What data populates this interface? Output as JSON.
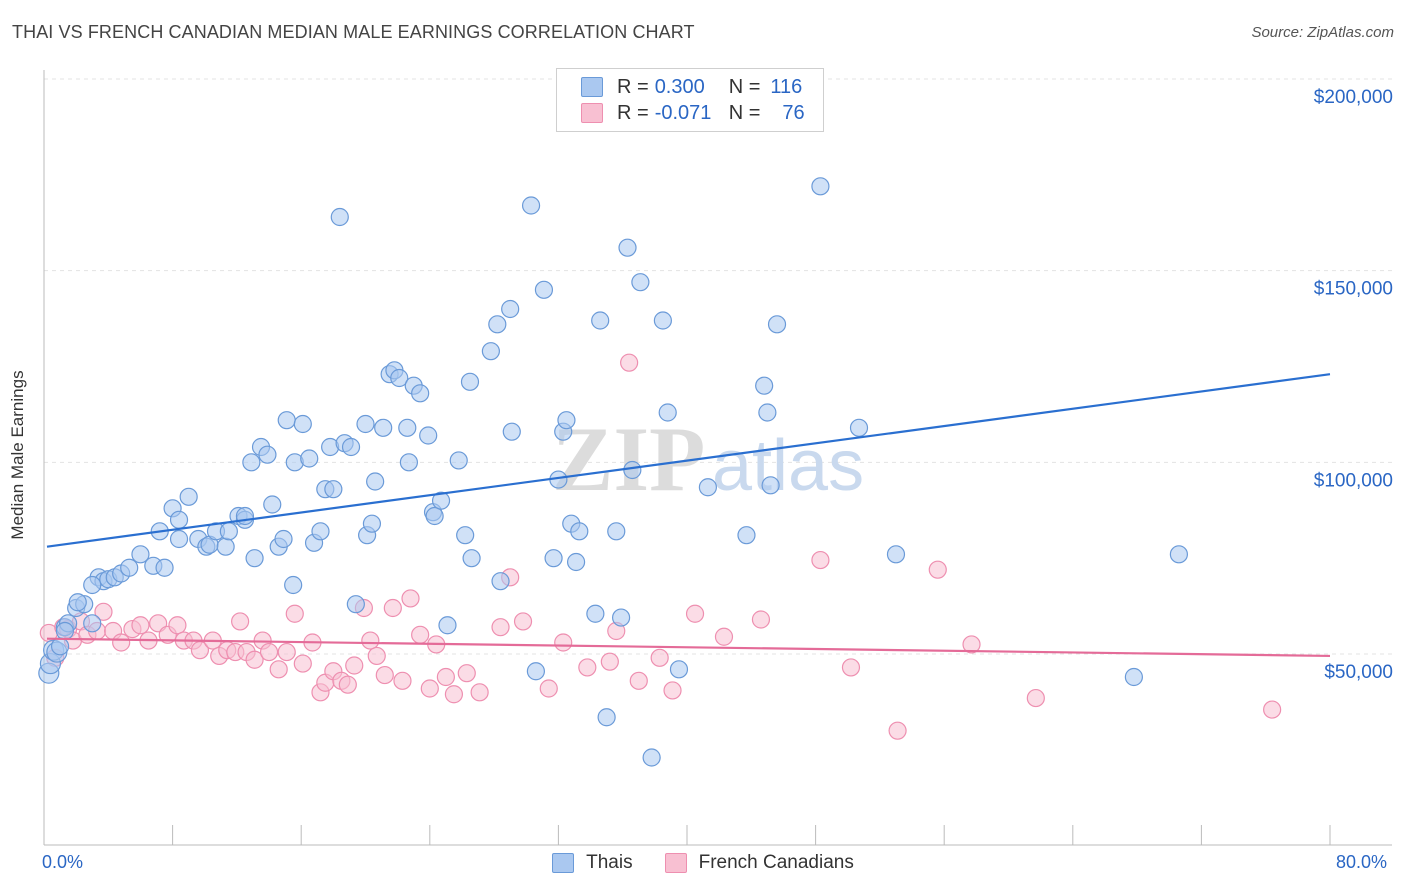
{
  "title": "THAI VS FRENCH CANADIAN MEDIAN MALE EARNINGS CORRELATION CHART",
  "source": "Source: ZipAtlas.com",
  "watermark": "ZIPatlas",
  "colors": {
    "thais_fill": "#aac8f0",
    "thais_stroke": "#6a9ad8",
    "thais_line": "#2a6fd0",
    "french_fill": "#f8c0d2",
    "french_stroke": "#ee8fb0",
    "french_line": "#e46b98",
    "accent_text": "#2a66c4"
  },
  "legend": {
    "rows": [
      {
        "r_label": "R =",
        "r_value": "0.300",
        "n_label": "N =",
        "n_value": "116"
      },
      {
        "r_label": "R =",
        "r_value": "-0.071",
        "n_label": "N =",
        "n_value": "76"
      }
    ]
  },
  "chart_data": {
    "type": "scatter",
    "title": "THAI VS FRENCH CANADIAN MEDIAN MALE EARNINGS CORRELATION CHART",
    "xlabel": "",
    "ylabel": "Median Male Earnings",
    "xlim": [
      0,
      80
    ],
    "ylim": [
      10000,
      210000
    ],
    "x_tick_labels": [
      "0.0%",
      "80.0%"
    ],
    "y_tick_labels": [
      "$50,000",
      "$100,000",
      "$150,000",
      "$200,000"
    ],
    "y_ticks": [
      50000,
      100000,
      150000,
      200000
    ],
    "grid": true,
    "legend_position": "top-center",
    "series": [
      {
        "name": "Thais",
        "trend": {
          "x": [
            0,
            80
          ],
          "y": [
            78000,
            123000
          ]
        },
        "points": [
          [
            0.3,
            45000
          ],
          [
            0.4,
            47500
          ],
          [
            0.6,
            51000
          ],
          [
            0.8,
            50500
          ],
          [
            1.0,
            52000
          ],
          [
            1.3,
            57000
          ],
          [
            1.5,
            58000
          ],
          [
            2.0,
            62000
          ],
          [
            2.5,
            63000
          ],
          [
            3.0,
            58000
          ],
          [
            3.4,
            70000
          ],
          [
            3.7,
            69000
          ],
          [
            4.0,
            69500
          ],
          [
            4.4,
            70000
          ],
          [
            4.8,
            71000
          ],
          [
            5.3,
            72500
          ],
          [
            6.0,
            76000
          ],
          [
            6.8,
            73000
          ],
          [
            7.5,
            72500
          ],
          [
            7.2,
            82000
          ],
          [
            8.0,
            88000
          ],
          [
            8.4,
            80000
          ],
          [
            8.4,
            85000
          ],
          [
            9.0,
            91000
          ],
          [
            9.6,
            80000
          ],
          [
            10.1,
            78000
          ],
          [
            10.3,
            78500
          ],
          [
            10.7,
            82000
          ],
          [
            11.3,
            78000
          ],
          [
            11.5,
            82000
          ],
          [
            12.1,
            86000
          ],
          [
            12.5,
            85000
          ],
          [
            12.5,
            86000
          ],
          [
            12.9,
            100000
          ],
          [
            13.1,
            75000
          ],
          [
            13.5,
            104000
          ],
          [
            13.9,
            102000
          ],
          [
            14.2,
            89000
          ],
          [
            14.6,
            78000
          ],
          [
            14.9,
            80000
          ],
          [
            15.1,
            111000
          ],
          [
            15.5,
            68000
          ],
          [
            15.6,
            100000
          ],
          [
            16.1,
            110000
          ],
          [
            16.5,
            101000
          ],
          [
            16.8,
            79000
          ],
          [
            17.2,
            82000
          ],
          [
            17.5,
            93000
          ],
          [
            17.8,
            104000
          ],
          [
            18.0,
            93000
          ],
          [
            18.4,
            164000
          ],
          [
            18.7,
            105000
          ],
          [
            19.1,
            104000
          ],
          [
            19.4,
            63000
          ],
          [
            20.0,
            110000
          ],
          [
            20.1,
            81000
          ],
          [
            20.4,
            84000
          ],
          [
            20.6,
            95000
          ],
          [
            21.1,
            109000
          ],
          [
            21.5,
            123000
          ],
          [
            21.8,
            124000
          ],
          [
            22.1,
            122000
          ],
          [
            22.6,
            109000
          ],
          [
            22.7,
            100000
          ],
          [
            23.0,
            120000
          ],
          [
            23.4,
            118000
          ],
          [
            23.9,
            107000
          ],
          [
            24.2,
            87000
          ],
          [
            24.3,
            86000
          ],
          [
            24.7,
            90000
          ],
          [
            25.1,
            57500
          ],
          [
            25.8,
            100500
          ],
          [
            26.2,
            81000
          ],
          [
            26.5,
            121000
          ],
          [
            26.6,
            75000
          ],
          [
            27.8,
            129000
          ],
          [
            28.2,
            136000
          ],
          [
            28.4,
            69000
          ],
          [
            29.0,
            140000
          ],
          [
            29.1,
            108000
          ],
          [
            30.3,
            167000
          ],
          [
            30.6,
            45500
          ],
          [
            31.1,
            145000
          ],
          [
            31.7,
            75000
          ],
          [
            32.0,
            95500
          ],
          [
            32.3,
            108000
          ],
          [
            32.5,
            111000
          ],
          [
            32.8,
            84000
          ],
          [
            33.1,
            74000
          ],
          [
            33.3,
            82000
          ],
          [
            34.3,
            60500
          ],
          [
            34.6,
            137000
          ],
          [
            35.0,
            33500
          ],
          [
            35.6,
            82000
          ],
          [
            35.9,
            59500
          ],
          [
            36.3,
            156000
          ],
          [
            36.6,
            98000
          ],
          [
            37.1,
            147000
          ],
          [
            37.8,
            23000
          ],
          [
            38.5,
            137000
          ],
          [
            38.8,
            113000
          ],
          [
            39.5,
            46000
          ],
          [
            41.3,
            93500
          ],
          [
            43.7,
            81000
          ],
          [
            44.8,
            120000
          ],
          [
            45.0,
            113000
          ],
          [
            45.2,
            94000
          ],
          [
            45.6,
            136000
          ],
          [
            48.3,
            172000
          ],
          [
            50.7,
            109000
          ],
          [
            53.0,
            76000
          ],
          [
            67.8,
            44000
          ],
          [
            70.6,
            76000
          ],
          [
            1.3,
            56000
          ],
          [
            2.1,
            63500
          ],
          [
            3.0,
            68000
          ]
        ]
      },
      {
        "name": "French Canadians",
        "trend": {
          "x": [
            0,
            80
          ],
          "y": [
            54000,
            49500
          ]
        },
        "points": [
          [
            0.3,
            55500
          ],
          [
            0.7,
            49000
          ],
          [
            1.2,
            57000
          ],
          [
            1.5,
            56500
          ],
          [
            1.8,
            53500
          ],
          [
            2.3,
            58500
          ],
          [
            2.7,
            55000
          ],
          [
            3.3,
            56000
          ],
          [
            3.7,
            61000
          ],
          [
            4.3,
            56000
          ],
          [
            4.8,
            53000
          ],
          [
            5.5,
            56500
          ],
          [
            6.0,
            57500
          ],
          [
            6.5,
            53500
          ],
          [
            7.1,
            58000
          ],
          [
            7.7,
            55000
          ],
          [
            8.3,
            57500
          ],
          [
            8.7,
            53500
          ],
          [
            9.3,
            53500
          ],
          [
            9.7,
            51000
          ],
          [
            10.5,
            53500
          ],
          [
            10.9,
            49500
          ],
          [
            11.4,
            51000
          ],
          [
            11.9,
            50500
          ],
          [
            12.2,
            58500
          ],
          [
            12.6,
            50500
          ],
          [
            13.1,
            48500
          ],
          [
            13.6,
            53500
          ],
          [
            14.0,
            50500
          ],
          [
            14.6,
            46000
          ],
          [
            15.1,
            50500
          ],
          [
            15.6,
            60500
          ],
          [
            16.1,
            47500
          ],
          [
            16.7,
            53000
          ],
          [
            17.2,
            40000
          ],
          [
            17.5,
            42500
          ],
          [
            18.0,
            45500
          ],
          [
            18.5,
            43000
          ],
          [
            18.9,
            42000
          ],
          [
            19.3,
            47000
          ],
          [
            19.9,
            62000
          ],
          [
            20.3,
            53500
          ],
          [
            20.7,
            49500
          ],
          [
            21.2,
            44500
          ],
          [
            21.7,
            62000
          ],
          [
            22.3,
            43000
          ],
          [
            22.8,
            64500
          ],
          [
            23.4,
            55000
          ],
          [
            24.0,
            41000
          ],
          [
            24.4,
            52500
          ],
          [
            25.0,
            44000
          ],
          [
            25.5,
            39500
          ],
          [
            26.3,
            45000
          ],
          [
            27.1,
            40000
          ],
          [
            28.4,
            57000
          ],
          [
            29.0,
            70000
          ],
          [
            29.8,
            58500
          ],
          [
            31.4,
            41000
          ],
          [
            32.3,
            53000
          ],
          [
            33.8,
            46500
          ],
          [
            35.2,
            48000
          ],
          [
            35.6,
            56000
          ],
          [
            36.4,
            126000
          ],
          [
            37.0,
            43000
          ],
          [
            38.3,
            49000
          ],
          [
            39.1,
            40500
          ],
          [
            40.5,
            60500
          ],
          [
            42.3,
            54500
          ],
          [
            44.6,
            59000
          ],
          [
            48.3,
            74500
          ],
          [
            50.2,
            46500
          ],
          [
            53.1,
            30000
          ],
          [
            55.6,
            72000
          ],
          [
            57.7,
            52500
          ],
          [
            61.7,
            38500
          ],
          [
            76.4,
            35500
          ]
        ]
      }
    ]
  },
  "bottom_legend": {
    "items": [
      {
        "label": "Thais"
      },
      {
        "label": "French Canadians"
      }
    ]
  },
  "x_axis": {
    "left_label": "0.0%",
    "right_label": "80.0%"
  }
}
